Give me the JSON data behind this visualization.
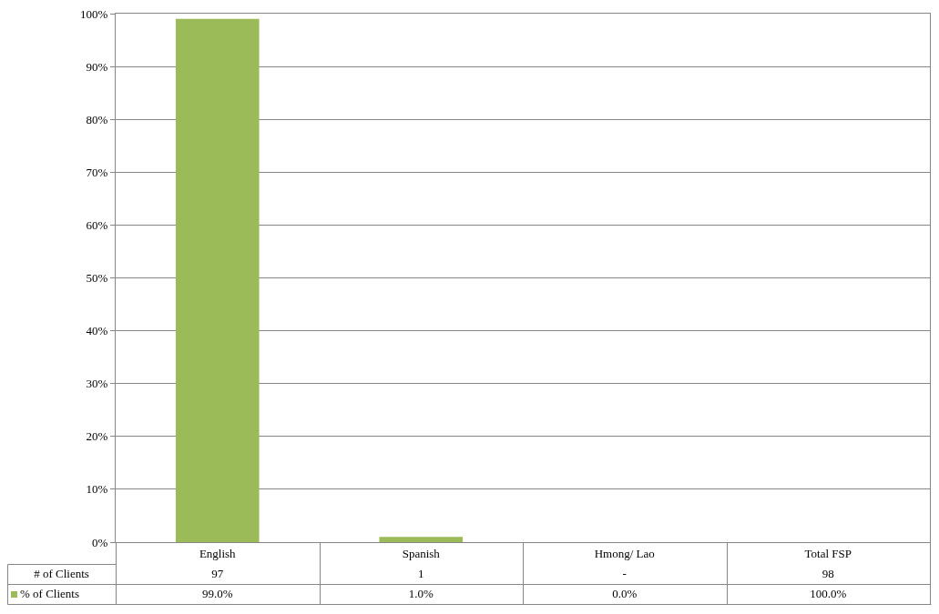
{
  "chart_data": {
    "type": "bar",
    "categories": [
      "English",
      "Spanish",
      "Hmong/ Lao",
      "Total FSP"
    ],
    "series": [
      {
        "name": "% of Clients",
        "color": "#9bbb59",
        "values": [
          99,
          1,
          0,
          null
        ],
        "value_labels": [
          "99.0%",
          "1.0%",
          "0.0%",
          "100.0%"
        ]
      }
    ],
    "ylim": [
      0,
      100
    ],
    "yticks": [
      {
        "value": 0,
        "label": "0%"
      },
      {
        "value": 10,
        "label": "10%"
      },
      {
        "value": 20,
        "label": "20%"
      },
      {
        "value": 30,
        "label": "30%"
      },
      {
        "value": 40,
        "label": "40%"
      },
      {
        "value": 50,
        "label": "50%"
      },
      {
        "value": 60,
        "label": "60%"
      },
      {
        "value": 70,
        "label": "70%"
      },
      {
        "value": 80,
        "label": "80%"
      },
      {
        "value": 90,
        "label": "90%"
      },
      {
        "value": 100,
        "label": "100%"
      }
    ],
    "grid": "y",
    "legend": "bottom left",
    "annotations": [
      "# of Clients",
      "97",
      "1",
      "-",
      "98"
    ]
  }
}
